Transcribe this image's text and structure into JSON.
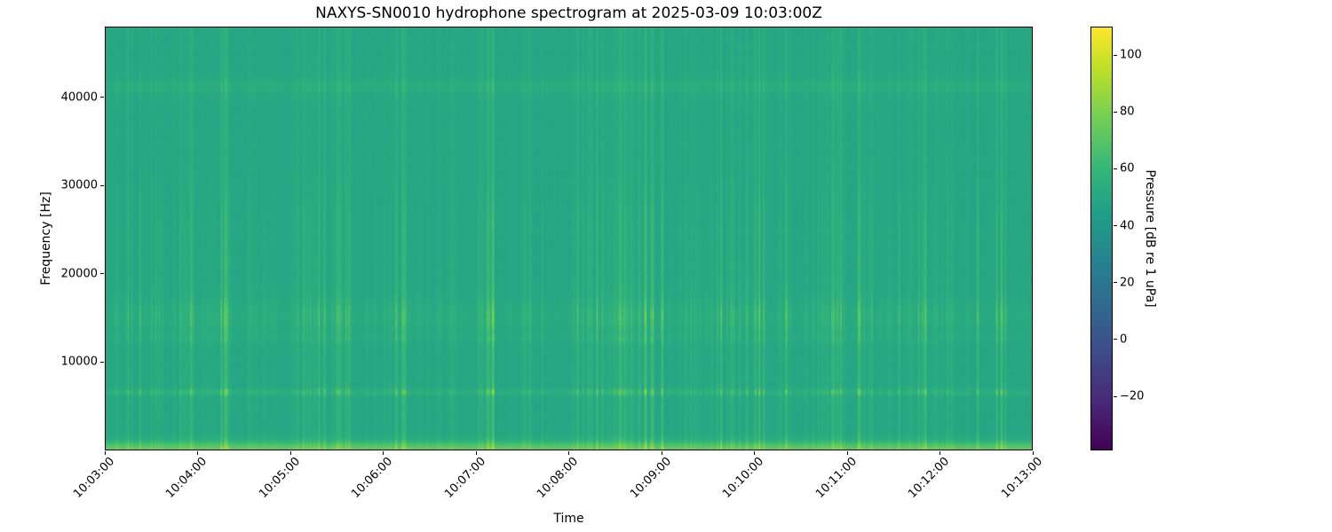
{
  "chart_data": {
    "type": "heatmap",
    "subtype": "hydrophone-spectrogram",
    "title": "NAXYS-SN0010 hydrophone spectrogram at 2025-03-09 10:03:00Z",
    "xlabel": "Time",
    "ylabel": "Frequency [Hz]",
    "x_ticks": {
      "labels": [
        "10:03:00",
        "10:04:00",
        "10:05:00",
        "10:06:00",
        "10:07:00",
        "10:08:00",
        "10:09:00",
        "10:10:00",
        "10:11:00",
        "10:12:00",
        "10:13:00"
      ]
    },
    "x_range": {
      "start": "10:03:00",
      "end": "10:13:00",
      "duration_seconds": 600
    },
    "y_ticks": {
      "values": [
        10000,
        20000,
        30000,
        40000
      ],
      "labels": [
        "10000",
        "20000",
        "30000",
        "40000"
      ]
    },
    "y_range_hz": [
      0,
      48000
    ],
    "grid": false,
    "colorbar": {
      "label": "Pressure [dB re 1 uPa]",
      "ticks": {
        "values": [
          100,
          80,
          60,
          40,
          20,
          0,
          -20
        ],
        "labels": [
          "100",
          "80",
          "60",
          "40",
          "20",
          "0",
          "−20"
        ]
      },
      "vmin_db": -39,
      "vmax_db": 110,
      "colormap": "viridis",
      "colormap_stops": [
        "#440154",
        "#482878",
        "#3e4989",
        "#31688e",
        "#26828e",
        "#1f9e89",
        "#35b779",
        "#6ece58",
        "#b5de2b",
        "#fde725"
      ],
      "position": "right"
    },
    "background_level_db": 50,
    "pixel_noise_db": 2.0,
    "horizontal_bands": [
      {
        "name": "strong-tonal-6500Hz",
        "center_hz": 6500,
        "sigma_hz": 260,
        "static_db": 4.5,
        "stripe_gain": 0.6,
        "approx_peak_db": 85,
        "description": "bright intermittent dashed tonal band"
      },
      {
        "name": "faint-band-12500Hz",
        "center_hz": 12550,
        "sigma_hz": 300,
        "static_db": 1.5,
        "stripe_gain": 0.22,
        "approx_peak_db": 62,
        "description": "faint dashed band"
      },
      {
        "name": "speckle-band-15000Hz",
        "center_hz": 15100,
        "sigma_hz": 1250,
        "static_db": 2.5,
        "stripe_gain": 0.4,
        "approx_peak_db": 72,
        "description": "speckled broadband band ~13.5-16.5 kHz"
      },
      {
        "name": "faint-line-41000Hz",
        "center_hz": 41300,
        "sigma_hz": 650,
        "static_db": 2.8,
        "stripe_gain": 0.12,
        "approx_peak_db": 56,
        "description": "faint continuous line near 41 kHz"
      },
      {
        "name": "low-frequency-floor",
        "center_hz": 0,
        "sigma_hz": 600,
        "static_db": 23,
        "stripe_gain": 0.15,
        "approx_peak_db": 78,
        "description": "bright strip of energy below ~1 kHz"
      }
    ],
    "stripe_profile": {
      "low_freq_gain": 0.52,
      "high_freq_gain": 0.3,
      "rolloff_start_hz": 26000,
      "rolloff_end_hz": 32000
    },
    "transients": {
      "description": "broadband impulsive vertical stripes (clicks) occurring in clusters throughout the record",
      "typical_level_db": [
        55,
        85
      ],
      "cluster_count": 95,
      "extra_faint_columns": 40,
      "min_stripe_db": 4,
      "max_stripe_db": 31,
      "seed": 1337
    }
  }
}
